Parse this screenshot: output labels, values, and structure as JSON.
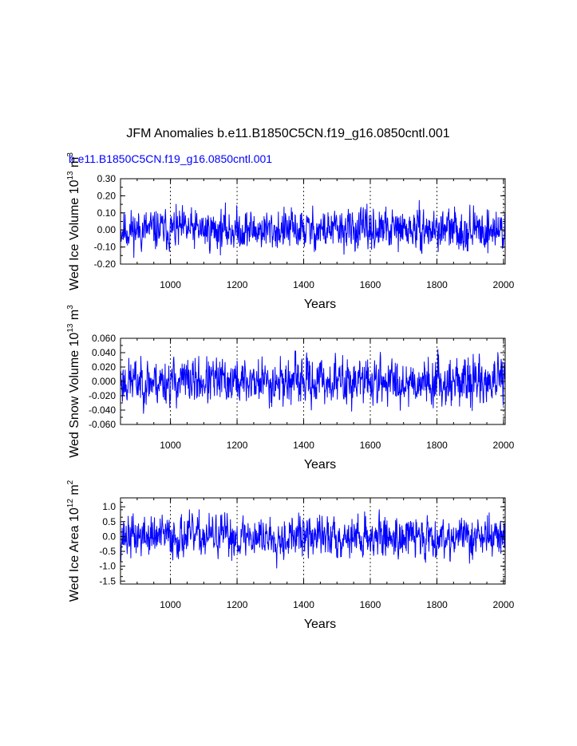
{
  "title": "JFM Anomalies b.e11.B1850C5CN.f19_g16.0850cntl.001",
  "subtitle": "b.e11.B1850C5CN.f19_g16.0850cntl.001",
  "colors": {
    "series": "#0000ff",
    "subtitle": "#0000ff",
    "axis": "#000000",
    "vline": "#000000"
  },
  "chart_data": [
    {
      "type": "line",
      "ylabel_main": "Wed Ice Volume 10",
      "ylabel_exp": "13",
      "ylabel_unit": " m",
      "ylabel_unit_exp": "3",
      "xlabel": "Years",
      "xlim": [
        850,
        2005
      ],
      "ylim": [
        -0.2,
        0.3
      ],
      "yticks": [
        -0.2,
        -0.1,
        0.0,
        0.1,
        0.2,
        0.3
      ],
      "ytick_labels": [
        "-0.20",
        "-0.10",
        "0.00",
        "0.10",
        "0.20",
        "0.30"
      ],
      "xticks": [
        1000,
        1200,
        1400,
        1600,
        1800,
        2000
      ],
      "xtick_labels": [
        "1000",
        "1200",
        "1400",
        "1600",
        "1800",
        "2000"
      ],
      "vlines": [
        1000,
        1200,
        1400,
        1600,
        1800,
        2000
      ],
      "noise": {
        "seed": 11,
        "amplitude": 0.055,
        "min": -0.19,
        "max": 0.21
      },
      "series": [
        {
          "name": "Wed Ice Volume anomaly",
          "x_start": 850,
          "x_end": 2005
        }
      ]
    },
    {
      "type": "line",
      "ylabel_main": "Wed Snow Volume 10",
      "ylabel_exp": "13",
      "ylabel_unit": " m",
      "ylabel_unit_exp": "3",
      "xlabel": "Years",
      "xlim": [
        850,
        2005
      ],
      "ylim": [
        -0.06,
        0.06
      ],
      "yticks": [
        -0.06,
        -0.04,
        -0.02,
        0.0,
        0.02,
        0.04,
        0.06
      ],
      "ytick_labels": [
        "-0.060",
        "-0.040",
        "-0.020",
        "0.000",
        "0.020",
        "0.040",
        "0.060"
      ],
      "xticks": [
        1000,
        1200,
        1400,
        1600,
        1800,
        2000
      ],
      "xtick_labels": [
        "1000",
        "1200",
        "1400",
        "1600",
        "1800",
        "2000"
      ],
      "vlines": [
        1000,
        1200,
        1400,
        1600,
        1800,
        2000
      ],
      "noise": {
        "seed": 23,
        "amplitude": 0.015,
        "min": -0.048,
        "max": 0.057
      },
      "series": [
        {
          "name": "Wed Snow Volume anomaly",
          "x_start": 850,
          "x_end": 2005
        }
      ]
    },
    {
      "type": "line",
      "ylabel_main": "Wed Ice Area 10",
      "ylabel_exp": "12",
      "ylabel_unit": " m",
      "ylabel_unit_exp": "2",
      "xlabel": "Years",
      "xlim": [
        850,
        2005
      ],
      "ylim": [
        -1.6,
        1.3
      ],
      "yticks": [
        -1.5,
        -1.0,
        -0.5,
        0.0,
        0.5,
        1.0
      ],
      "ytick_labels": [
        "-1.5",
        "-1.0",
        "-0.5",
        "0.0",
        "0.5",
        "1.0"
      ],
      "xticks": [
        1000,
        1200,
        1400,
        1600,
        1800,
        2000
      ],
      "xtick_labels": [
        "1000",
        "1200",
        "1400",
        "1600",
        "1800",
        "2000"
      ],
      "vlines": [
        1000,
        1200,
        1400,
        1600,
        1800,
        2000
      ],
      "noise": {
        "seed": 37,
        "amplitude": 0.33,
        "min": -1.2,
        "max": 0.9
      },
      "series": [
        {
          "name": "Wed Ice Area anomaly",
          "x_start": 850,
          "x_end": 2005
        }
      ]
    }
  ]
}
